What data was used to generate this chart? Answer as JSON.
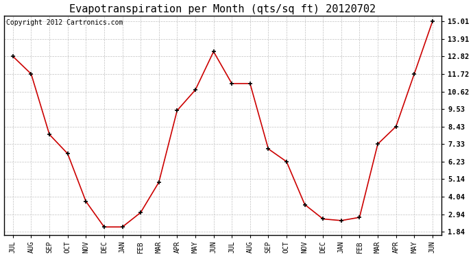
{
  "title": "Evapotranspiration per Month (qts/sq ft) 20120702",
  "copyright": "Copyright 2012 Cartronics.com",
  "x_labels": [
    "JUL",
    "AUG",
    "SEP",
    "OCT",
    "NOV",
    "DEC",
    "JAN",
    "FEB",
    "MAR",
    "APR",
    "MAY",
    "JUN",
    "JUL",
    "AUG",
    "SEP",
    "OCT",
    "NOV",
    "DEC",
    "JAN",
    "FEB",
    "MAR",
    "APR",
    "MAY",
    "JUN"
  ],
  "y_values": [
    12.82,
    11.72,
    7.93,
    6.73,
    3.74,
    2.14,
    2.14,
    3.04,
    4.94,
    9.43,
    10.72,
    13.12,
    11.12,
    11.12,
    7.03,
    6.23,
    3.54,
    2.64,
    2.54,
    2.74,
    7.33,
    8.43,
    11.72,
    15.01
  ],
  "y_ticks": [
    1.84,
    2.94,
    4.04,
    5.14,
    6.23,
    7.33,
    8.43,
    9.53,
    10.62,
    11.72,
    12.82,
    13.91,
    15.01
  ],
  "line_color": "#cc0000",
  "marker_color": "#000000",
  "bg_color": "#ffffff",
  "grid_color": "#c0c0c0",
  "title_fontsize": 11,
  "copyright_fontsize": 7
}
